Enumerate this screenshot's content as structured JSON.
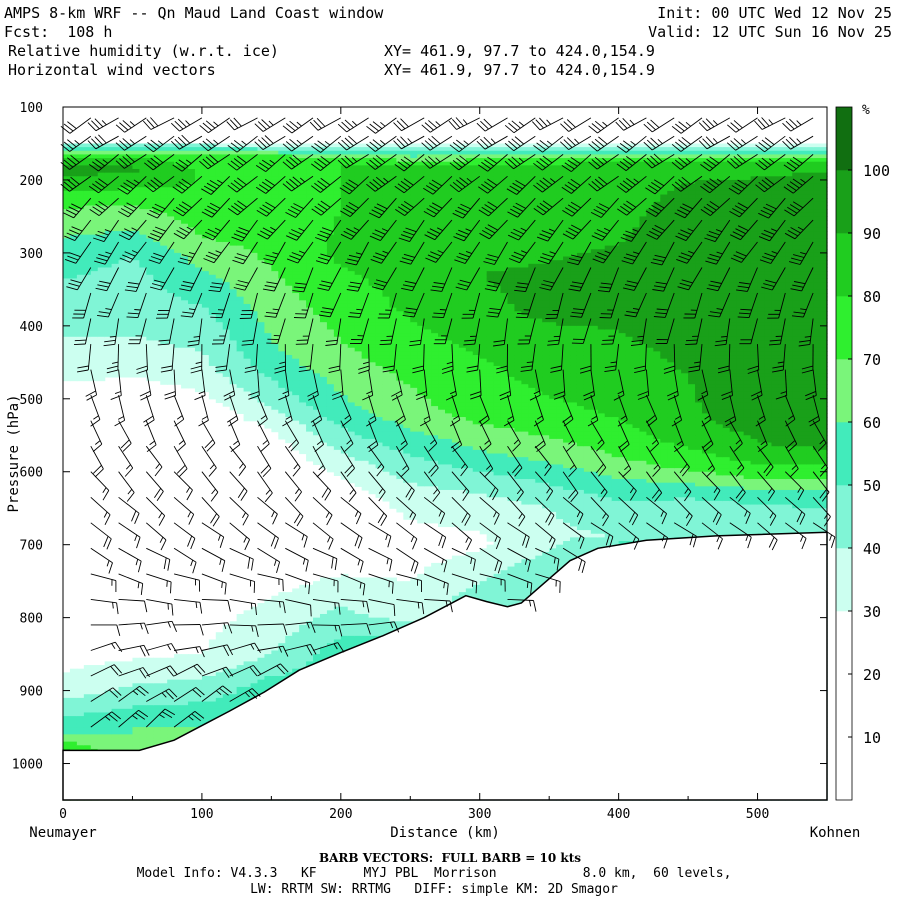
{
  "header": {
    "title": "AMPS 8-km WRF -- Qn Maud Land Coast window",
    "init": "Init: 00 UTC Wed 12 Nov 25",
    "fcst": "Fcst:  108 h",
    "valid": "Valid: 12 UTC Sun 16 Nov 25",
    "field1": "Relative humidity (w.r.t. ice)",
    "xy1": "XY= 461.9, 97.7 to 424.0,154.9",
    "field2": "Horizontal wind vectors",
    "xy2": "XY= 461.9, 97.7 to 424.0,154.9"
  },
  "footer": {
    "barb_note": "BARB VECTORS:  FULL BARB = 10 kts",
    "model_info": "Model Info: V4.3.3   KF      MYJ PBL  Morrison           8.0 km,  60 levels,",
    "physics": "LW: RRTM SW: RRTMG   DIFF: simple KM: 2D Smagor"
  },
  "colors": {
    "bands": [
      "#ffffff",
      "#ffffff",
      "#ffffff",
      "#ccfff0",
      "#80f5d6",
      "#42ebbb",
      "#7af57a",
      "#2fef2f",
      "#20cc20",
      "#19a019",
      "#116f11"
    ],
    "cap": "#3d5c10",
    "ground": "#ffffff"
  },
  "chart_data": {
    "type": "heatmap",
    "title": "Relative humidity (w.r.t. ice) with horizontal wind barbs",
    "xlabel": "Distance (km)",
    "ylabel": "Pressure (hPa)",
    "xlim": [
      0,
      550
    ],
    "ylim": [
      1050,
      100
    ],
    "xticks": [
      0,
      100,
      200,
      300,
      400,
      500
    ],
    "yticks": [
      100,
      200,
      300,
      400,
      500,
      600,
      700,
      800,
      900,
      1000
    ],
    "x_endpoints": {
      "left": "Neumayer",
      "right": "Kohnen"
    },
    "colorbar": {
      "unit": "%",
      "levels": [
        0,
        10,
        20,
        30,
        40,
        50,
        60,
        70,
        80,
        90,
        100,
        110
      ],
      "labels": [
        10,
        20,
        30,
        40,
        50,
        60,
        70,
        80,
        90,
        100
      ]
    },
    "terrain_surface_hPa": {
      "x": [
        0,
        20,
        55,
        80,
        100,
        120,
        145,
        170,
        200,
        230,
        260,
        290,
        305,
        320,
        330,
        345,
        365,
        385,
        420,
        470,
        550
      ],
      "p": [
        982,
        982,
        982,
        968,
        948,
        928,
        902,
        872,
        848,
        825,
        800,
        770,
        778,
        785,
        780,
        755,
        722,
        705,
        694,
        688,
        683
      ]
    },
    "rh_columns": [
      {
        "x": 0,
        "profile": [
          [
            100,
            15
          ],
          [
            145,
            20
          ],
          [
            165,
            75
          ],
          [
            185,
            95
          ],
          [
            230,
            72
          ],
          [
            300,
            55
          ],
          [
            400,
            42
          ],
          [
            450,
            36
          ],
          [
            500,
            25
          ],
          [
            700,
            20
          ],
          [
            850,
            25
          ],
          [
            900,
            35
          ],
          [
            960,
            60
          ],
          [
            982,
            82
          ]
        ]
      },
      {
        "x": 50,
        "profile": [
          [
            100,
            15
          ],
          [
            145,
            20
          ],
          [
            165,
            75
          ],
          [
            185,
            92
          ],
          [
            230,
            72
          ],
          [
            300,
            50
          ],
          [
            400,
            42
          ],
          [
            450,
            35
          ],
          [
            500,
            22
          ],
          [
            700,
            20
          ],
          [
            850,
            28
          ],
          [
            900,
            42
          ],
          [
            950,
            60
          ]
        ]
      },
      {
        "x": 100,
        "profile": [
          [
            100,
            15
          ],
          [
            145,
            20
          ],
          [
            165,
            75
          ],
          [
            200,
            80
          ],
          [
            280,
            70
          ],
          [
            330,
            58
          ],
          [
            400,
            45
          ],
          [
            470,
            35
          ],
          [
            520,
            22
          ],
          [
            700,
            20
          ],
          [
            850,
            30
          ],
          [
            900,
            45
          ],
          [
            948,
            60
          ]
        ]
      },
      {
        "x": 150,
        "profile": [
          [
            100,
            15
          ],
          [
            145,
            20
          ],
          [
            170,
            78
          ],
          [
            230,
            75
          ],
          [
            300,
            72
          ],
          [
            360,
            66
          ],
          [
            440,
            58
          ],
          [
            500,
            44
          ],
          [
            540,
            30
          ],
          [
            580,
            22
          ],
          [
            700,
            20
          ],
          [
            850,
            40
          ],
          [
            896,
            55
          ]
        ]
      },
      {
        "x": 200,
        "profile": [
          [
            100,
            15
          ],
          [
            145,
            20
          ],
          [
            175,
            80
          ],
          [
            240,
            80
          ],
          [
            300,
            82
          ],
          [
            370,
            75
          ],
          [
            440,
            68
          ],
          [
            520,
            56
          ],
          [
            560,
            44
          ],
          [
            600,
            32
          ],
          [
            640,
            22
          ],
          [
            700,
            20
          ],
          [
            848,
            55
          ]
        ]
      },
      {
        "x": 250,
        "profile": [
          [
            100,
            15
          ],
          [
            145,
            20
          ],
          [
            180,
            82
          ],
          [
            240,
            80
          ],
          [
            300,
            84
          ],
          [
            370,
            82
          ],
          [
            430,
            76
          ],
          [
            520,
            66
          ],
          [
            560,
            55
          ],
          [
            600,
            44
          ],
          [
            640,
            34
          ],
          [
            700,
            25
          ],
          [
            800,
            35
          ],
          [
            812,
            50
          ]
        ]
      },
      {
        "x": 300,
        "profile": [
          [
            100,
            15
          ],
          [
            145,
            20
          ],
          [
            180,
            84
          ],
          [
            240,
            84
          ],
          [
            330,
            90
          ],
          [
            380,
            88
          ],
          [
            440,
            80
          ],
          [
            520,
            74
          ],
          [
            570,
            60
          ],
          [
            610,
            46
          ],
          [
            650,
            34
          ],
          [
            700,
            28
          ],
          [
            772,
            45
          ]
        ]
      },
      {
        "x": 350,
        "profile": [
          [
            100,
            15
          ],
          [
            145,
            20
          ],
          [
            180,
            84
          ],
          [
            260,
            86
          ],
          [
            340,
            92
          ],
          [
            380,
            92
          ],
          [
            430,
            86
          ],
          [
            520,
            78
          ],
          [
            570,
            66
          ],
          [
            610,
            52
          ],
          [
            650,
            40
          ],
          [
            700,
            38
          ],
          [
            748,
            50
          ]
        ]
      },
      {
        "x": 400,
        "profile": [
          [
            100,
            15
          ],
          [
            145,
            20
          ],
          [
            180,
            86
          ],
          [
            260,
            88
          ],
          [
            340,
            94
          ],
          [
            380,
            93
          ],
          [
            440,
            86
          ],
          [
            530,
            80
          ],
          [
            580,
            70
          ],
          [
            620,
            56
          ],
          [
            660,
            44
          ],
          [
            690,
            40
          ],
          [
            697,
            50
          ]
        ]
      },
      {
        "x": 450,
        "profile": [
          [
            100,
            15
          ],
          [
            145,
            20
          ],
          [
            180,
            88
          ],
          [
            250,
            94
          ],
          [
            330,
            96
          ],
          [
            400,
            96
          ],
          [
            470,
            90
          ],
          [
            540,
            88
          ],
          [
            590,
            74
          ],
          [
            620,
            58
          ],
          [
            650,
            44
          ],
          [
            680,
            42
          ],
          [
            690,
            52
          ]
        ]
      },
      {
        "x": 500,
        "profile": [
          [
            100,
            15
          ],
          [
            145,
            20
          ],
          [
            180,
            88
          ],
          [
            240,
            95
          ],
          [
            330,
            97
          ],
          [
            430,
            97
          ],
          [
            500,
            96
          ],
          [
            560,
            90
          ],
          [
            600,
            76
          ],
          [
            630,
            56
          ],
          [
            660,
            44
          ],
          [
            686,
            50
          ]
        ]
      },
      {
        "x": 550,
        "profile": [
          [
            100,
            15
          ],
          [
            145,
            20
          ],
          [
            180,
            88
          ],
          [
            220,
            96
          ],
          [
            330,
            98
          ],
          [
            440,
            98
          ],
          [
            520,
            98
          ],
          [
            560,
            94
          ],
          [
            600,
            76
          ],
          [
            630,
            58
          ],
          [
            660,
            46
          ],
          [
            683,
            50
          ]
        ]
      }
    ],
    "wind_barbs": {
      "x_km": [
        20,
        40,
        60,
        80,
        100,
        120,
        140,
        160,
        180,
        200,
        220,
        240,
        260,
        280,
        300,
        320,
        340,
        360,
        380,
        400,
        420,
        440,
        460,
        480,
        500,
        520,
        540
      ],
      "p_levels_hPa": [
        115,
        140,
        165,
        195,
        225,
        255,
        285,
        320,
        355,
        390,
        425,
        460,
        495,
        530,
        565,
        600,
        635,
        670,
        705,
        740,
        775,
        810,
        845,
        880,
        915,
        950
      ],
      "profile": [
        [
          100,
          240,
          30
        ],
        [
          200,
          230,
          40
        ],
        [
          300,
          210,
          30
        ],
        [
          400,
          190,
          20
        ],
        [
          500,
          160,
          15
        ],
        [
          600,
          140,
          15
        ],
        [
          700,
          120,
          15
        ],
        [
          800,
          90,
          10
        ],
        [
          900,
          60,
          20
        ],
        [
          1000,
          40,
          25
        ]
      ]
    }
  }
}
